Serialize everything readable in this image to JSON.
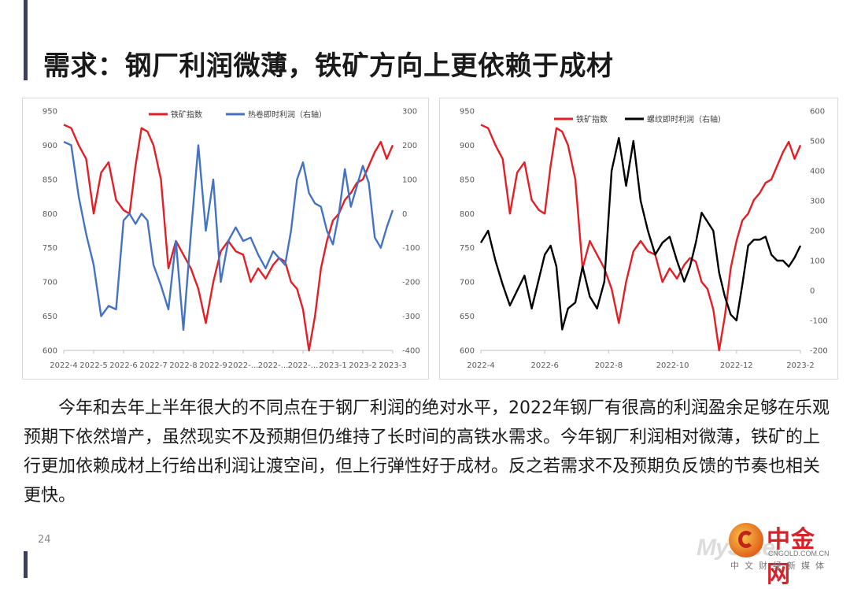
{
  "title": "需求：钢厂利润微薄，铁矿方向上更依赖于成材",
  "body_text": "今年和去年上半年很大的不同点在于钢厂利润的绝对水平，2022年钢厂有很高的利润盈余足够在乐观预期下依然增产，虽然现实不及预期但仍维持了长时间的高铁水需求。今年钢厂利润相对微薄，铁矿的上行更加依赖成材上行给出利润让渡空间，但上行弹性好于成材。反之若需求不及预期负反馈的节奏也相关更快。",
  "page_number": "24",
  "watermark": {
    "left_text": "MySteel",
    "logo_name": "中金网",
    "logo_url": "CNGOLD.COM.CN",
    "logo_tagline": "中文财经新媒体"
  },
  "colors": {
    "red": "#e31e24",
    "blue": "#4472c4",
    "black": "#000000",
    "accent": "#3b3f58"
  },
  "chart_data": [
    {
      "type": "line",
      "title": "",
      "legend_position": "top-center",
      "grid": false,
      "x_tick_labels": [
        "2022-4",
        "2022-5",
        "2022-6",
        "2022-7",
        "2022-8",
        "2022-9",
        "2022-...",
        "2022-...",
        "2022-...",
        "2023-1",
        "2023-2",
        "2023-3"
      ],
      "ylim_left": [
        600,
        950
      ],
      "ylim_right": [
        -400,
        300
      ],
      "y_ticks_left": [
        "600",
        "650",
        "700",
        "750",
        "800",
        "850",
        "900",
        "950"
      ],
      "y_ticks_right": [
        "-400",
        "-300",
        "-200",
        "-100",
        "0",
        "100",
        "200",
        "300"
      ],
      "series": [
        {
          "name": "铁矿指数",
          "axis": "left",
          "color": "#e31e24",
          "x": [
            0,
            0.25,
            0.5,
            0.75,
            1,
            1.25,
            1.5,
            1.75,
            2,
            2.2,
            2.4,
            2.6,
            2.8,
            3,
            3.25,
            3.5,
            3.75,
            4,
            4.25,
            4.5,
            4.75,
            5,
            5.25,
            5.5,
            5.75,
            6,
            6.25,
            6.5,
            6.75,
            7,
            7.2,
            7.4,
            7.6,
            7.8,
            8,
            8.2,
            8.4,
            8.6,
            8.8,
            9,
            9.2,
            9.4,
            9.6,
            9.8,
            10,
            10.2,
            10.4,
            10.6,
            10.8,
            11
          ],
          "values": [
            930,
            925,
            900,
            880,
            800,
            860,
            875,
            820,
            805,
            800,
            870,
            925,
            920,
            900,
            850,
            720,
            760,
            740,
            720,
            690,
            640,
            700,
            745,
            760,
            745,
            740,
            700,
            720,
            705,
            725,
            735,
            730,
            700,
            690,
            660,
            600,
            650,
            720,
            760,
            790,
            800,
            820,
            830,
            845,
            850,
            870,
            890,
            905,
            880,
            900
          ]
        },
        {
          "name": "热卷即时利润（右轴）",
          "axis": "right",
          "color": "#4472c4",
          "x": [
            0,
            0.25,
            0.5,
            0.75,
            1,
            1.25,
            1.5,
            1.75,
            2,
            2.2,
            2.4,
            2.6,
            2.8,
            3,
            3.25,
            3.5,
            3.75,
            4,
            4.25,
            4.5,
            4.75,
            5,
            5.25,
            5.5,
            5.75,
            6,
            6.25,
            6.5,
            6.75,
            7,
            7.2,
            7.4,
            7.6,
            7.8,
            8,
            8.2,
            8.4,
            8.6,
            8.8,
            9,
            9.2,
            9.4,
            9.6,
            9.8,
            10,
            10.2,
            10.4,
            10.6,
            10.8,
            11
          ],
          "values": [
            210,
            200,
            50,
            -60,
            -150,
            -300,
            -270,
            -280,
            -20,
            0,
            -30,
            0,
            -20,
            -150,
            -210,
            -280,
            -80,
            -340,
            -60,
            200,
            -50,
            100,
            -200,
            -80,
            -40,
            -80,
            -70,
            -120,
            -160,
            -110,
            -130,
            -150,
            -50,
            100,
            150,
            60,
            30,
            20,
            -50,
            -90,
            0,
            130,
            20,
            80,
            140,
            90,
            -70,
            -100,
            -40,
            10
          ]
        }
      ]
    },
    {
      "type": "line",
      "title": "",
      "legend_position": "top-center",
      "grid": false,
      "x_tick_labels": [
        "2022-4",
        "2022-6",
        "2022-8",
        "2022-10",
        "2022-12",
        "2023-2"
      ],
      "ylim_left": [
        600,
        950
      ],
      "ylim_right": [
        -200,
        600
      ],
      "y_ticks_left": [
        "600",
        "650",
        "700",
        "750",
        "800",
        "850",
        "900",
        "950"
      ],
      "y_ticks_right": [
        "-200",
        "-100",
        "0",
        "100",
        "200",
        "300",
        "400",
        "500",
        "600"
      ],
      "series": [
        {
          "name": "铁矿指数",
          "axis": "left",
          "color": "#e31e24",
          "x": [
            0,
            0.25,
            0.5,
            0.75,
            1,
            1.25,
            1.5,
            1.75,
            2,
            2.2,
            2.4,
            2.6,
            2.8,
            3,
            3.25,
            3.5,
            3.75,
            4,
            4.25,
            4.5,
            4.75,
            5,
            5.25,
            5.5,
            5.75,
            6,
            6.25,
            6.5,
            6.75,
            7,
            7.2,
            7.4,
            7.6,
            7.8,
            8,
            8.2,
            8.4,
            8.6,
            8.8,
            9,
            9.2,
            9.4,
            9.6,
            9.8,
            10,
            10.2,
            10.4,
            10.6,
            10.8,
            11
          ],
          "values": [
            930,
            925,
            900,
            880,
            800,
            860,
            875,
            820,
            805,
            800,
            870,
            925,
            920,
            900,
            850,
            720,
            760,
            740,
            720,
            690,
            640,
            700,
            745,
            760,
            745,
            740,
            700,
            720,
            705,
            725,
            735,
            730,
            700,
            690,
            660,
            600,
            650,
            720,
            760,
            790,
            800,
            820,
            830,
            845,
            850,
            870,
            890,
            905,
            880,
            900
          ]
        },
        {
          "name": "螺纹即时利润（右轴）",
          "axis": "right",
          "color": "#000000",
          "x": [
            0,
            0.25,
            0.5,
            0.75,
            1,
            1.25,
            1.5,
            1.75,
            2,
            2.2,
            2.4,
            2.6,
            2.8,
            3,
            3.25,
            3.5,
            3.75,
            4,
            4.25,
            4.5,
            4.75,
            5,
            5.25,
            5.5,
            5.75,
            6,
            6.25,
            6.5,
            6.75,
            7,
            7.2,
            7.4,
            7.6,
            7.8,
            8,
            8.2,
            8.4,
            8.6,
            8.8,
            9,
            9.2,
            9.4,
            9.6,
            9.8,
            10,
            10.2,
            10.4,
            10.6,
            10.8,
            11
          ],
          "values": [
            160,
            200,
            100,
            20,
            -50,
            0,
            50,
            -60,
            40,
            120,
            150,
            80,
            -130,
            -60,
            -40,
            80,
            -20,
            -60,
            30,
            400,
            510,
            350,
            500,
            300,
            200,
            120,
            160,
            180,
            100,
            30,
            80,
            160,
            260,
            230,
            200,
            60,
            -20,
            -80,
            -100,
            20,
            150,
            170,
            170,
            180,
            120,
            100,
            100,
            80,
            110,
            150
          ]
        }
      ]
    }
  ]
}
